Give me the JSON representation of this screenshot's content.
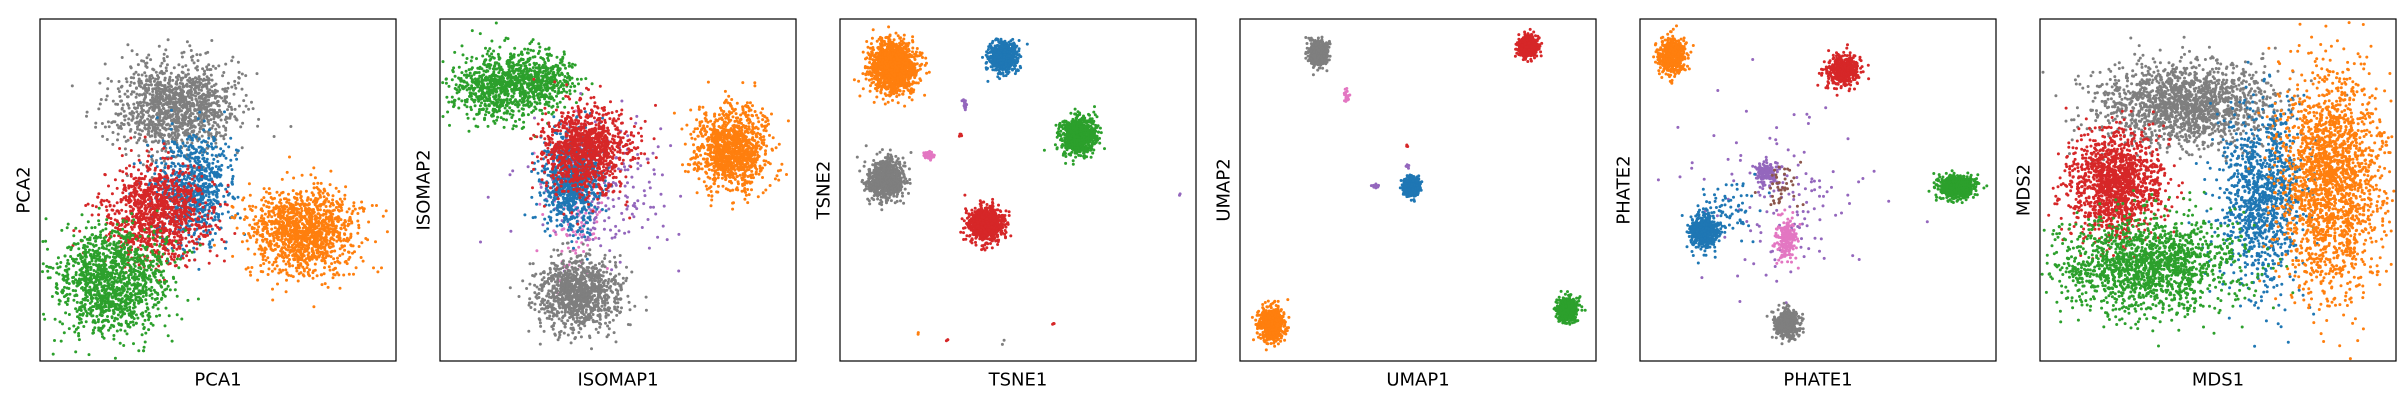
{
  "figure": {
    "point_colors": {
      "blue": "#1f77b4",
      "orange": "#ff7f0e",
      "green": "#2ca02c",
      "red": "#d62728",
      "purple": "#9467bd",
      "gray": "#7f7f7f",
      "pink": "#e377c2"
    }
  },
  "chart_data": [
    {
      "type": "scatter",
      "xlabel": "PCA1",
      "ylabel": "PCA2",
      "xlim": [
        0,
        100
      ],
      "ylim": [
        0,
        100
      ],
      "ticks": "none",
      "grid": false,
      "clusters": [
        {
          "color": "gray",
          "cx": 38,
          "cy": 74,
          "sx": 8,
          "sy": 6.5,
          "n": 1300
        },
        {
          "color": "blue",
          "cx": 43,
          "cy": 50,
          "sx": 5.5,
          "sy": 8,
          "n": 750
        },
        {
          "color": "red",
          "cx": 33,
          "cy": 43,
          "sx": 7,
          "sy": 7,
          "n": 1100
        },
        {
          "color": "green",
          "cx": 20,
          "cy": 23,
          "sx": 8,
          "sy": 7.5,
          "n": 1300
        },
        {
          "color": "orange",
          "cx": 74,
          "cy": 38,
          "sx": 7.5,
          "sy": 6.5,
          "n": 1300
        }
      ]
    },
    {
      "type": "scatter",
      "xlabel": "ISOMAP1",
      "ylabel": "ISOMAP2",
      "xlim": [
        0,
        100
      ],
      "ylim": [
        0,
        100
      ],
      "ticks": "none",
      "grid": false,
      "clusters": [
        {
          "color": "green",
          "cx": 15,
          "cy": 80,
          "sx": 5.5,
          "sy": 5,
          "n": 650
        },
        {
          "color": "green",
          "cx": 28,
          "cy": 82,
          "sx": 5,
          "sy": 4.5,
          "n": 500
        },
        {
          "color": "purple",
          "cx": 46,
          "cy": 50,
          "sx": 10,
          "sy": 10,
          "n": 200
        },
        {
          "color": "pink",
          "cx": 38,
          "cy": 40,
          "sx": 4,
          "sy": 12,
          "n": 120
        },
        {
          "color": "blue",
          "cx": 37,
          "cy": 53,
          "sx": 4,
          "sy": 7,
          "n": 850
        },
        {
          "color": "red",
          "cx": 41,
          "cy": 62,
          "sx": 6,
          "sy": 6,
          "n": 1100
        },
        {
          "color": "gray",
          "cx": 39,
          "cy": 20,
          "sx": 6,
          "sy": 5,
          "n": 1100
        },
        {
          "color": "orange",
          "cx": 82,
          "cy": 62,
          "sx": 5,
          "sy": 6,
          "n": 1100
        }
      ]
    },
    {
      "type": "scatter",
      "xlabel": "TSNE1",
      "ylabel": "TSNE2",
      "xlim": [
        0,
        100
      ],
      "ylim": [
        0,
        100
      ],
      "ticks": "none",
      "grid": false,
      "clusters": [
        {
          "color": "orange",
          "cx": 15,
          "cy": 86,
          "sx": 3.2,
          "sy": 3.6,
          "n": 1500
        },
        {
          "color": "blue",
          "cx": 46,
          "cy": 89,
          "sx": 2,
          "sy": 2.2,
          "n": 650
        },
        {
          "color": "green",
          "cx": 67,
          "cy": 66,
          "sx": 2.4,
          "sy": 2.6,
          "n": 800
        },
        {
          "color": "gray",
          "cx": 13,
          "cy": 53,
          "sx": 2.5,
          "sy": 2.7,
          "n": 900
        },
        {
          "color": "red",
          "cx": 41,
          "cy": 40,
          "sx": 2.3,
          "sy": 2.5,
          "n": 900
        },
        {
          "color": "pink",
          "cx": 25,
          "cy": 60,
          "sx": 0.7,
          "sy": 0.6,
          "n": 50
        },
        {
          "color": "purple",
          "cx": 35,
          "cy": 75,
          "sx": 0.3,
          "sy": 0.8,
          "n": 20
        },
        {
          "color": "red",
          "cx": 34,
          "cy": 66,
          "sx": 0.3,
          "sy": 0.3,
          "n": 4
        },
        {
          "color": "red",
          "cx": 60,
          "cy": 11,
          "sx": 0.3,
          "sy": 0.3,
          "n": 3
        },
        {
          "color": "red",
          "cx": 30,
          "cy": 6,
          "sx": 0.3,
          "sy": 0.3,
          "n": 3
        },
        {
          "color": "purple",
          "cx": 95,
          "cy": 48,
          "sx": 0.3,
          "sy": 0.3,
          "n": 2
        },
        {
          "color": "orange",
          "cx": 22,
          "cy": 8,
          "sx": 0.3,
          "sy": 0.3,
          "n": 2
        },
        {
          "color": "gray",
          "cx": 46,
          "cy": 5,
          "sx": 0.3,
          "sy": 0.3,
          "n": 2
        }
      ]
    },
    {
      "type": "scatter",
      "xlabel": "UMAP1",
      "ylabel": "UMAP2",
      "xlim": [
        0,
        100
      ],
      "ylim": [
        0,
        100
      ],
      "ticks": "none",
      "grid": false,
      "clusters": [
        {
          "color": "gray",
          "cx": 22,
          "cy": 90,
          "sx": 1.2,
          "sy": 1.8,
          "n": 600
        },
        {
          "color": "red",
          "cx": 81,
          "cy": 92,
          "sx": 1.3,
          "sy": 1.5,
          "n": 650
        },
        {
          "color": "blue",
          "cx": 48,
          "cy": 51,
          "sx": 1.1,
          "sy": 1.3,
          "n": 550
        },
        {
          "color": "orange",
          "cx": 9,
          "cy": 11,
          "sx": 1.6,
          "sy": 2.2,
          "n": 900
        },
        {
          "color": "green",
          "cx": 92,
          "cy": 15,
          "sx": 1.3,
          "sy": 1.6,
          "n": 550
        },
        {
          "color": "pink",
          "cx": 30,
          "cy": 77,
          "sx": 0.4,
          "sy": 0.9,
          "n": 30
        },
        {
          "color": "purple",
          "cx": 38,
          "cy": 51,
          "sx": 0.6,
          "sy": 0.3,
          "n": 20
        },
        {
          "color": "purple",
          "cx": 47,
          "cy": 57,
          "sx": 0.3,
          "sy": 0.3,
          "n": 8
        },
        {
          "color": "red",
          "cx": 47,
          "cy": 63,
          "sx": 0.3,
          "sy": 0.3,
          "n": 3
        },
        {
          "color": "gray",
          "cx": 20,
          "cy": 88,
          "sx": 0.3,
          "sy": 0.3,
          "n": 4
        }
      ]
    },
    {
      "type": "scatter",
      "xlabel": "PHATE1",
      "ylabel": "PHATE2",
      "xlim": [
        0,
        100
      ],
      "ylim": [
        0,
        100
      ],
      "ticks": "none",
      "grid": false,
      "clusters": [
        {
          "color": "orange",
          "cx": 9,
          "cy": 89,
          "sx": 2,
          "sy": 2.6,
          "n": 500
        },
        {
          "color": "red",
          "cx": 57,
          "cy": 85,
          "sx": 2.2,
          "sy": 2.3,
          "n": 450
        },
        {
          "color": "purple",
          "cx": 40,
          "cy": 47,
          "sx": 12,
          "sy": 13,
          "n": 140
        },
        {
          "color": "purple",
          "cx": 36,
          "cy": 55,
          "sx": 2,
          "sy": 2,
          "n": 130
        },
        {
          "color": "brown",
          "cx": 40,
          "cy": 50,
          "sx": 2.5,
          "sy": 3,
          "n": 40
        },
        {
          "color": "pink",
          "cx": 41,
          "cy": 36,
          "sx": 1.5,
          "sy": 3,
          "n": 220
        },
        {
          "color": "blue",
          "cx": 18,
          "cy": 38,
          "sx": 2,
          "sy": 2.6,
          "n": 500
        },
        {
          "color": "blue",
          "cx": 25,
          "cy": 45,
          "sx": 4,
          "sy": 4,
          "n": 70
        },
        {
          "color": "green",
          "cx": 89,
          "cy": 51,
          "sx": 2.4,
          "sy": 1.7,
          "n": 650
        },
        {
          "color": "gray",
          "cx": 41,
          "cy": 11,
          "sx": 1.6,
          "sy": 2,
          "n": 500
        }
      ]
    },
    {
      "type": "scatter",
      "xlabel": "MDS1",
      "ylabel": "MDS2",
      "xlim": [
        0,
        100
      ],
      "ylim": [
        0,
        100
      ],
      "ticks": "none",
      "grid": false,
      "clusters": [
        {
          "color": "gray",
          "cx": 40,
          "cy": 75,
          "sx": 12,
          "sy": 6,
          "n": 1700
        },
        {
          "color": "blue",
          "cx": 62,
          "cy": 48,
          "sx": 6,
          "sy": 13,
          "n": 1100
        },
        {
          "color": "red",
          "cx": 21,
          "cy": 52,
          "sx": 6.5,
          "sy": 7.5,
          "n": 1400
        },
        {
          "color": "green",
          "cx": 30,
          "cy": 28,
          "sx": 12.5,
          "sy": 7,
          "n": 1600
        },
        {
          "color": "orange",
          "cx": 82,
          "cy": 53,
          "sx": 7,
          "sy": 16,
          "n": 2000
        }
      ]
    }
  ]
}
